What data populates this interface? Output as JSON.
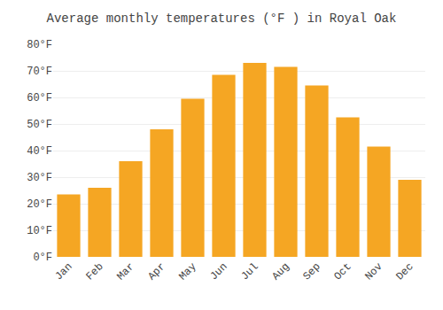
{
  "chart_data": {
    "type": "bar",
    "title": "Average monthly temperatures (°F ) in Royal Oak",
    "categories": [
      "Jan",
      "Feb",
      "Mar",
      "Apr",
      "May",
      "Jun",
      "Jul",
      "Aug",
      "Sep",
      "Oct",
      "Nov",
      "Dec"
    ],
    "values": [
      23.5,
      26.0,
      36.0,
      48.0,
      59.5,
      68.5,
      73.0,
      71.5,
      64.5,
      52.5,
      41.5,
      29.0
    ],
    "color": "#F5A623",
    "ylim": [
      0,
      80
    ],
    "yticks": [
      {
        "value": 0,
        "label": "0°F"
      },
      {
        "value": 10,
        "label": "10°F"
      },
      {
        "value": 20,
        "label": "20°F"
      },
      {
        "value": 30,
        "label": "30°F"
      },
      {
        "value": 40,
        "label": "40°F"
      },
      {
        "value": 50,
        "label": "50°F"
      },
      {
        "value": 60,
        "label": "60°F"
      },
      {
        "value": 70,
        "label": "70°F"
      },
      {
        "value": 80,
        "label": "80°F"
      }
    ],
    "grid": true
  }
}
